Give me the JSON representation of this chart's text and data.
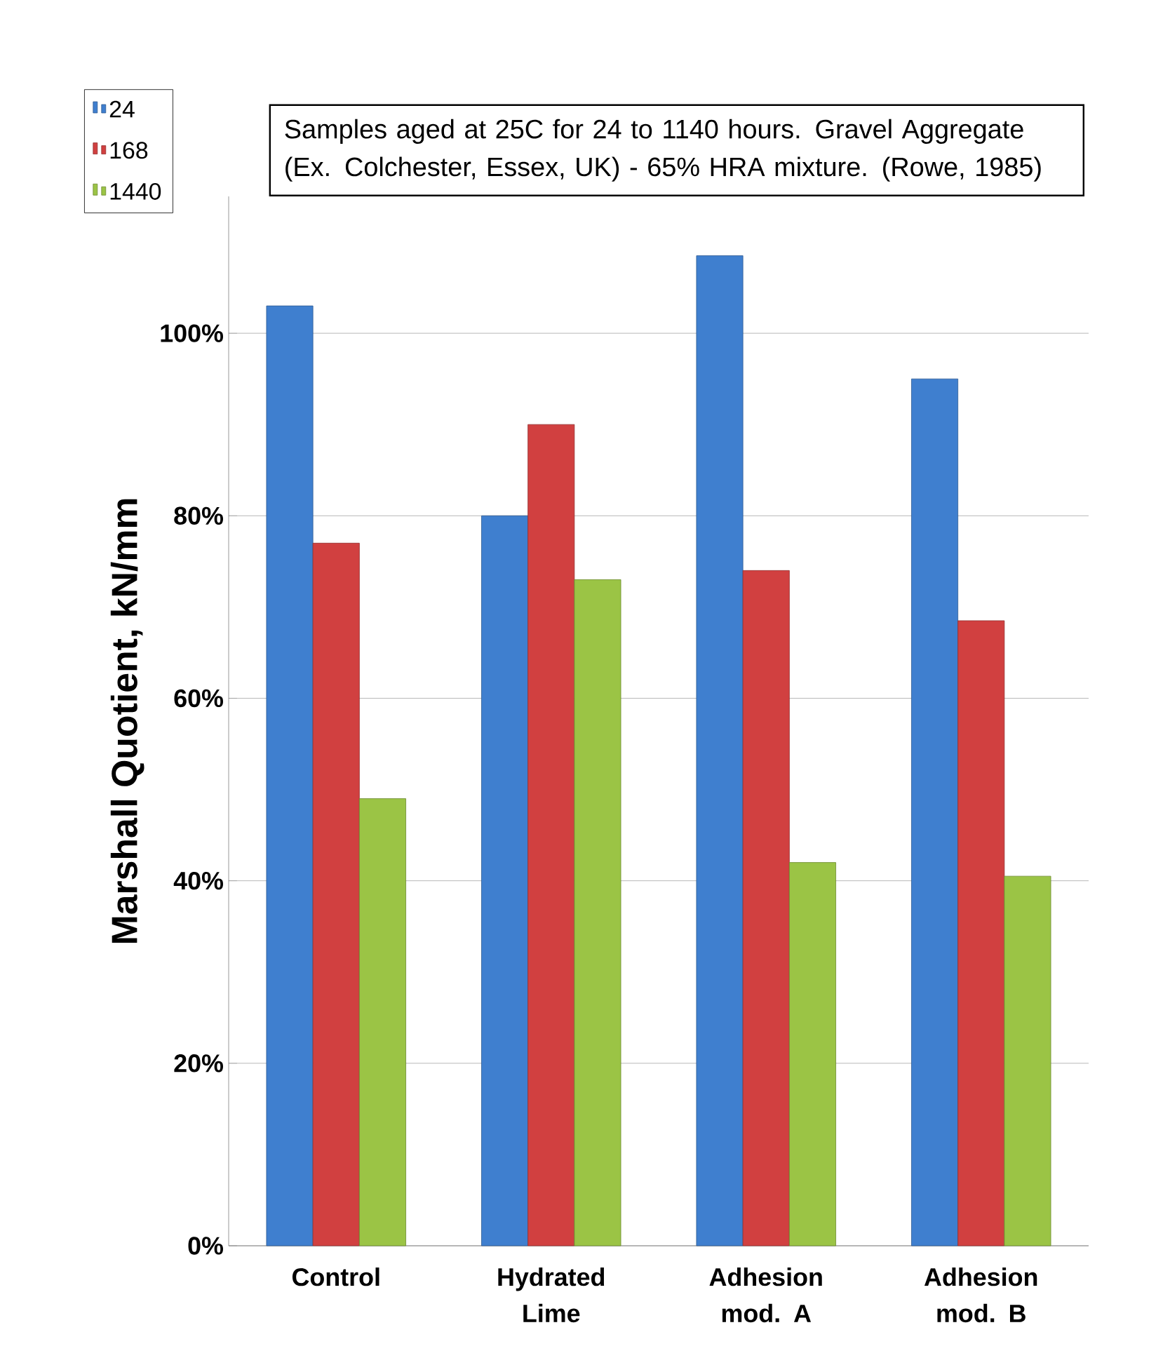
{
  "chart_data": {
    "type": "bar",
    "ylabel": "Marshall Quotient, kN/mm",
    "categories": [
      "Control",
      "Hydrated Lime",
      "Adhesion mod. A",
      "Adhesion mod. B"
    ],
    "series": [
      {
        "name": "24",
        "color": "#3f7fcf",
        "values": [
          103,
          80,
          108.5,
          95
        ]
      },
      {
        "name": "168",
        "color": "#d14040",
        "values": [
          77,
          90,
          74,
          68.5
        ]
      },
      {
        "name": "1440",
        "color": "#9bc445",
        "values": [
          49,
          73,
          42,
          40.5
        ]
      }
    ],
    "ylim": [
      0,
      115
    ],
    "yticks": [
      {
        "value": 0,
        "label": "0%"
      },
      {
        "value": 20,
        "label": "20%"
      },
      {
        "value": 40,
        "label": "40%"
      },
      {
        "value": 60,
        "label": "60%"
      },
      {
        "value": 80,
        "label": "80%"
      },
      {
        "value": 100,
        "label": "100%"
      }
    ],
    "grid": "y",
    "legend": "top left",
    "annotations": [
      "Samples aged at 25C for 24 to 1140 hours. Gravel Aggregate (Ex. Colchester, Essex, UK) - 65% HRA mixture. (Rowe, 1985)"
    ]
  }
}
